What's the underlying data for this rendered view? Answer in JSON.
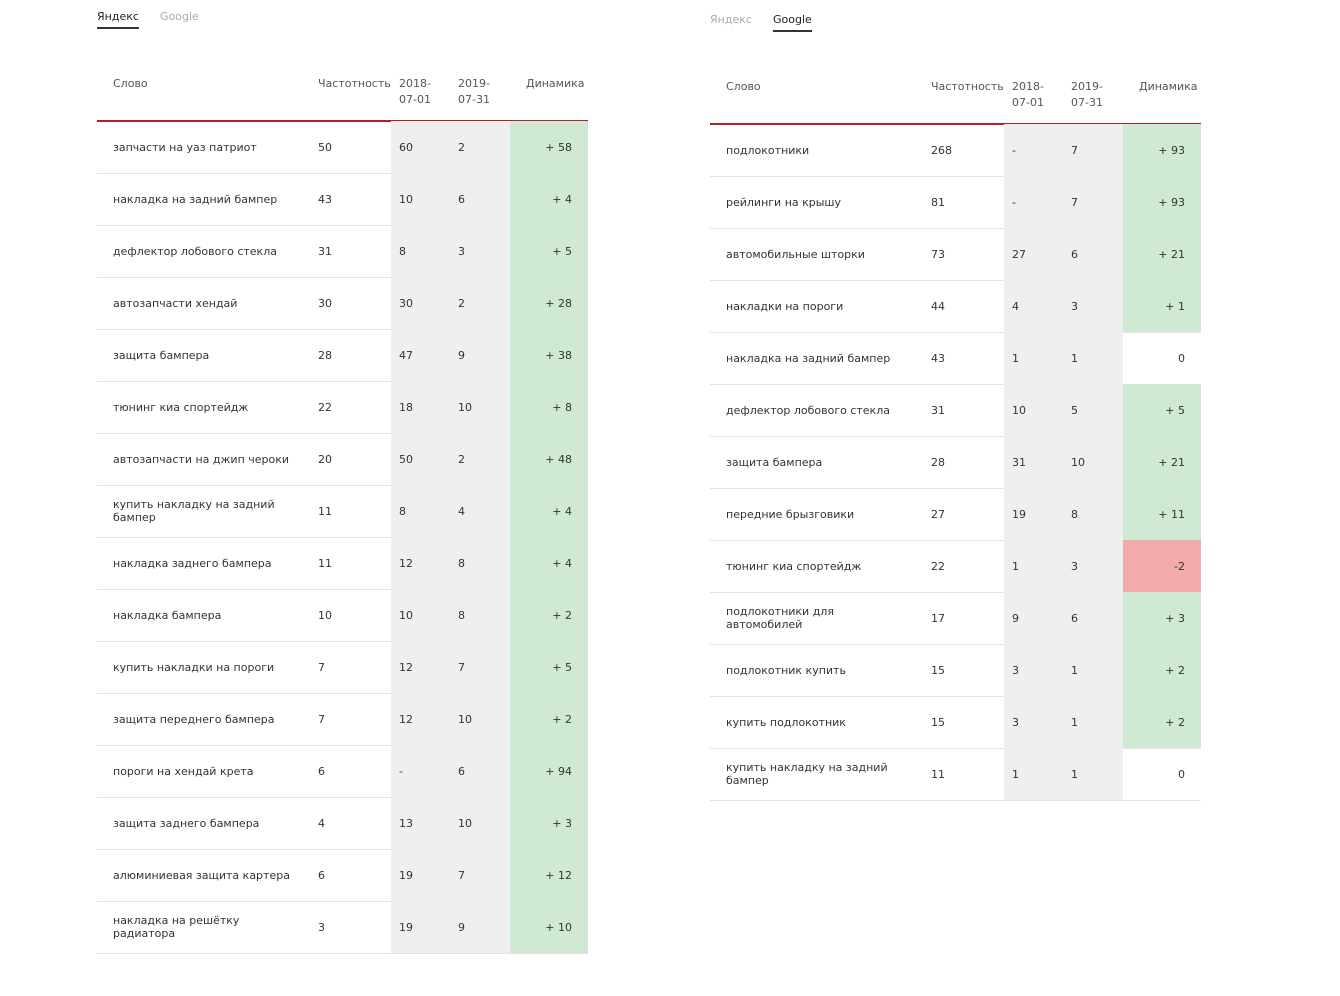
{
  "colors": {
    "positive": "#cfe9d2",
    "negative": "#f2aaaa",
    "shade": "#efefef",
    "rule": "#b22222"
  },
  "panels": [
    {
      "tabs": [
        "Яндекс",
        "Google"
      ],
      "active_tab": 0,
      "columns": [
        "Слово",
        "Частотность",
        "2018-07-01",
        "2019-07-31",
        "Динамика"
      ],
      "rows": [
        [
          "запчасти на уаз патриот",
          50,
          60,
          2,
          "+ 58"
        ],
        [
          "накладка на задний бампер",
          43,
          10,
          6,
          "+ 4"
        ],
        [
          "дефлектор лобового стекла",
          31,
          8,
          3,
          "+ 5"
        ],
        [
          "автозапчасти хендай",
          30,
          30,
          2,
          "+ 28"
        ],
        [
          "защита бампера",
          28,
          47,
          9,
          "+ 38"
        ],
        [
          "тюнинг киа спортейдж",
          22,
          18,
          10,
          "+ 8"
        ],
        [
          "автозапчасти на джип чероки",
          20,
          50,
          2,
          "+ 48"
        ],
        [
          "купить накладку на задний бампер",
          11,
          8,
          4,
          "+ 4"
        ],
        [
          "накладка заднего бампера",
          11,
          12,
          8,
          "+ 4"
        ],
        [
          "накладка бампера",
          10,
          10,
          8,
          "+ 2"
        ],
        [
          "купить накладки на пороги",
          7,
          12,
          7,
          "+ 5"
        ],
        [
          "защита переднего бампера",
          7,
          12,
          10,
          "+ 2"
        ],
        [
          "пороги на хендай крета",
          6,
          "-",
          6,
          "+ 94"
        ],
        [
          "защита заднего бампера",
          4,
          13,
          10,
          "+ 3"
        ],
        [
          "алюминиевая защита картера",
          6,
          19,
          7,
          "+ 12"
        ],
        [
          "накладка на решётку радиатора",
          3,
          19,
          9,
          "+ 10"
        ]
      ]
    },
    {
      "tabs": [
        "Яндекс",
        "Google"
      ],
      "active_tab": 1,
      "columns": [
        "Слово",
        "Частотность",
        "2018-07-01",
        "2019-07-31",
        "Динамика"
      ],
      "rows": [
        [
          "подлокотники",
          268,
          "-",
          7,
          "+ 93"
        ],
        [
          "рейлинги на крышу",
          81,
          "-",
          7,
          "+ 93"
        ],
        [
          "автомобильные шторки",
          73,
          27,
          6,
          "+ 21"
        ],
        [
          "накладки на пороги",
          44,
          4,
          3,
          "+ 1"
        ],
        [
          "накладка на задний бампер",
          43,
          1,
          1,
          "0"
        ],
        [
          "дефлектор лобового стекла",
          31,
          10,
          5,
          "+ 5"
        ],
        [
          "защита бампера",
          28,
          31,
          10,
          "+ 21"
        ],
        [
          "передние брызговики",
          27,
          19,
          8,
          "+ 11"
        ],
        [
          "тюнинг киа спортейдж",
          22,
          1,
          3,
          "-2"
        ],
        [
          "подлокотники для автомобилей",
          17,
          9,
          6,
          "+ 3"
        ],
        [
          "подлокотник купить",
          15,
          3,
          1,
          "+ 2"
        ],
        [
          "купить подлокотник",
          15,
          3,
          1,
          "+ 2"
        ],
        [
          "купить накладку на задний бампер",
          11,
          1,
          1,
          "0"
        ]
      ]
    }
  ]
}
